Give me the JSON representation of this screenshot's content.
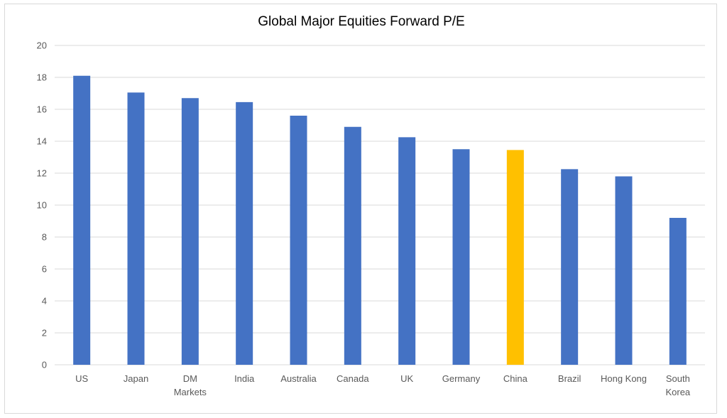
{
  "chart_data": {
    "type": "bar",
    "title": "Global Major Equities Forward P/E",
    "categories": [
      [
        "US"
      ],
      [
        "Japan"
      ],
      [
        "DM",
        "Markets"
      ],
      [
        "India"
      ],
      [
        "Australia"
      ],
      [
        "Canada"
      ],
      [
        "UK"
      ],
      [
        "Germany"
      ],
      [
        "China"
      ],
      [
        "Brazil"
      ],
      [
        "Hong Kong"
      ],
      [
        "South",
        "Korea"
      ]
    ],
    "values": [
      18.1,
      17.05,
      16.7,
      16.45,
      15.6,
      14.9,
      14.25,
      13.5,
      13.45,
      12.25,
      11.8,
      9.2
    ],
    "highlight_index": 8,
    "ylim": [
      0,
      20
    ],
    "yticks": [
      0,
      2,
      4,
      6,
      8,
      10,
      12,
      14,
      16,
      18,
      20
    ],
    "grid": true,
    "legend": "none",
    "colors": {
      "bar": "#4472C4",
      "highlight": "#FFC000",
      "grid": "#d9d9d9",
      "tick_text": "#595959"
    }
  }
}
